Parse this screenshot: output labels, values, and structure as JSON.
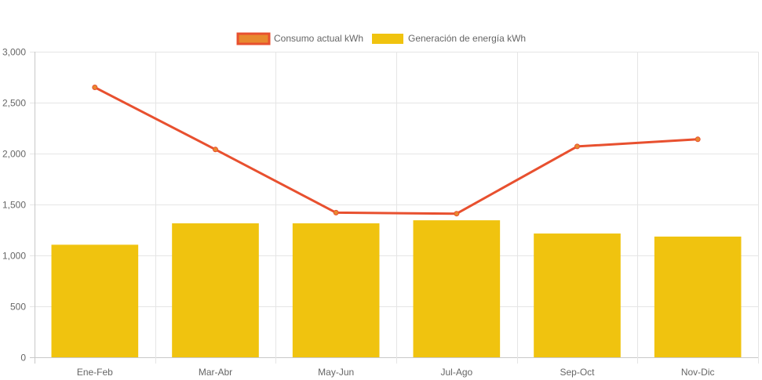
{
  "chart_data": {
    "type": "bar",
    "categories": [
      "Ene-Feb",
      "Mar-Abr",
      "May-Jun",
      "Jul-Ago",
      "Sep-Oct",
      "Nov-Dic"
    ],
    "series": [
      {
        "name": "Consumo actual kWh",
        "type": "line",
        "color": "#e8502f",
        "fill": "#e8892f",
        "values": [
          2650,
          2040,
          1420,
          1410,
          2070,
          2140
        ]
      },
      {
        "name": "Generación de energía kWh",
        "type": "bar",
        "color": "#f0c30f",
        "values": [
          1105,
          1315,
          1315,
          1345,
          1215,
          1185
        ]
      }
    ],
    "y_ticks": [
      "0",
      "500",
      "1,000",
      "1,500",
      "2,000",
      "2,500",
      "3,000"
    ],
    "ylim": [
      0,
      3000
    ],
    "grid": true,
    "legend_position": "top-center"
  }
}
